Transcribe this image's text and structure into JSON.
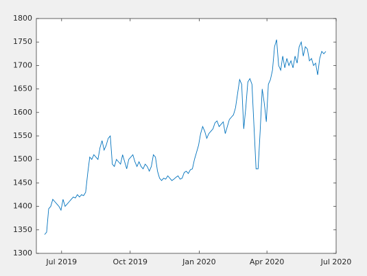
{
  "chart_data": {
    "type": "line",
    "color": "#0072bd",
    "values": [
      1340,
      1345,
      1395,
      1400,
      1415,
      1410,
      1405,
      1400,
      1392,
      1415,
      1400,
      1405,
      1410,
      1415,
      1420,
      1418,
      1425,
      1420,
      1425,
      1423,
      1430,
      1470,
      1505,
      1500,
      1510,
      1505,
      1500,
      1525,
      1540,
      1520,
      1530,
      1545,
      1550,
      1490,
      1485,
      1500,
      1495,
      1490,
      1510,
      1495,
      1480,
      1500,
      1505,
      1510,
      1495,
      1485,
      1495,
      1485,
      1480,
      1490,
      1485,
      1475,
      1485,
      1510,
      1505,
      1475,
      1460,
      1455,
      1460,
      1458,
      1465,
      1460,
      1455,
      1458,
      1462,
      1465,
      1458,
      1460,
      1472,
      1475,
      1470,
      1478,
      1480,
      1500,
      1515,
      1530,
      1555,
      1570,
      1560,
      1545,
      1555,
      1560,
      1565,
      1578,
      1582,
      1570,
      1575,
      1580,
      1555,
      1570,
      1585,
      1590,
      1595,
      1610,
      1640,
      1670,
      1660,
      1565,
      1610,
      1665,
      1672,
      1660,
      1570,
      1480,
      1480,
      1560,
      1650,
      1620,
      1580,
      1660,
      1670,
      1690,
      1740,
      1755,
      1700,
      1690,
      1720,
      1695,
      1715,
      1700,
      1710,
      1695,
      1720,
      1705,
      1740,
      1750,
      1720,
      1740,
      1735,
      1710,
      1715,
      1700,
      1705,
      1680,
      1715,
      1730,
      1725,
      1730
    ],
    "xlim": [
      -4,
      142
    ],
    "xticks": [
      {
        "value": 8.3,
        "label": "Jul 2019"
      },
      {
        "value": 41.7,
        "label": "Oct 2019"
      },
      {
        "value": 75.3,
        "label": "Jan 2020"
      },
      {
        "value": 108.3,
        "label": "Apr 2020"
      },
      {
        "value": 142,
        "label": "Jul 2020"
      }
    ],
    "ylim": [
      1300,
      1800
    ],
    "yticks": [
      1300,
      1350,
      1400,
      1450,
      1500,
      1550,
      1600,
      1650,
      1700,
      1750,
      1800
    ]
  }
}
